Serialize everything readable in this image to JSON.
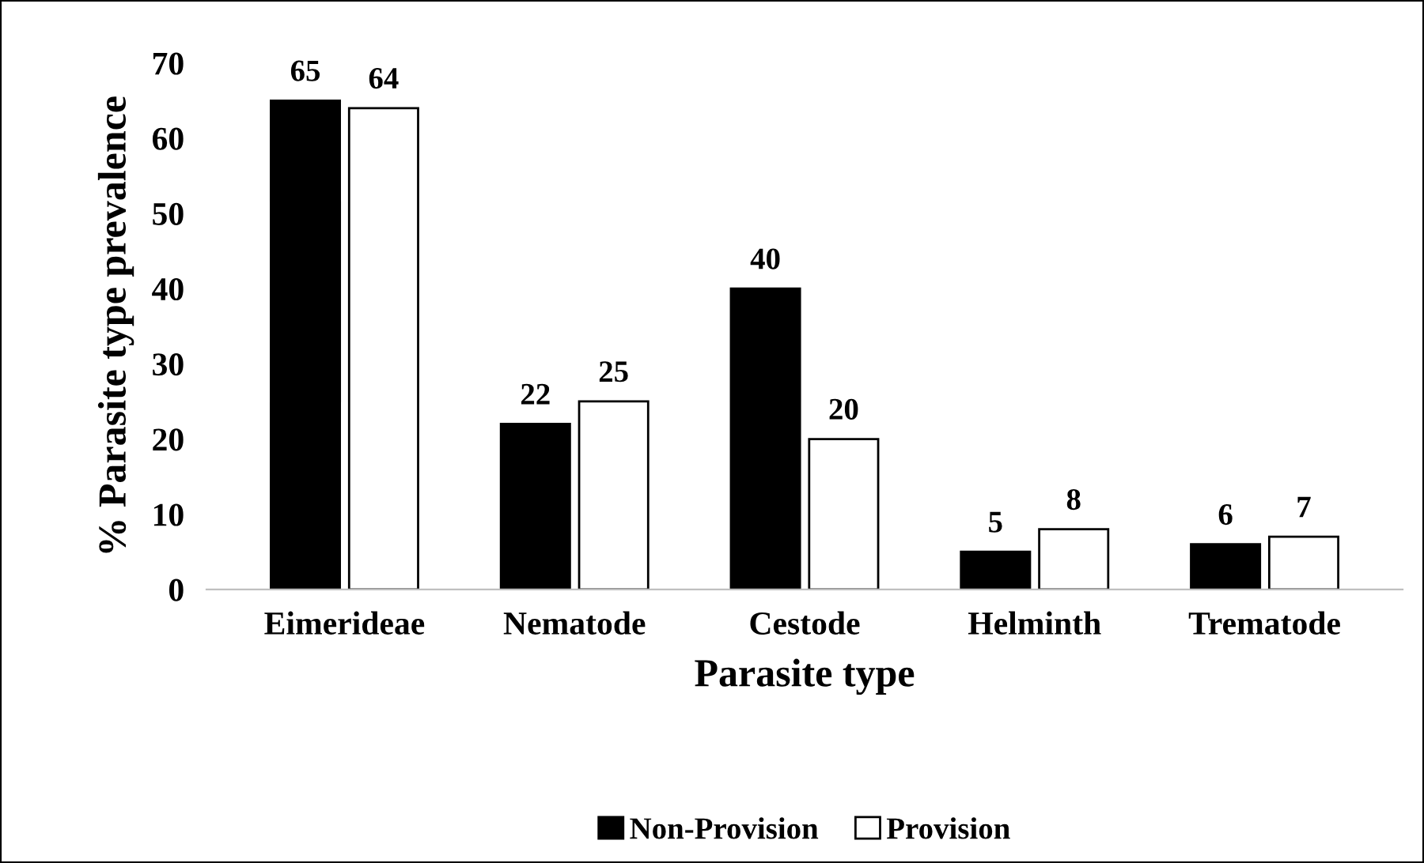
{
  "chart_data": {
    "type": "bar",
    "xlabel": "Parasite type",
    "ylabel": "% Parasite type prevalence",
    "categories": [
      "Eimerideae",
      "Nematode",
      "Cestode",
      "Helminth",
      "Trematode"
    ],
    "series": [
      {
        "name": "Non-Provision",
        "color": "#000000",
        "values": [
          65,
          22,
          40,
          5,
          6
        ]
      },
      {
        "name": "Provision",
        "color": "#ffffff",
        "values": [
          64,
          25,
          20,
          8,
          7
        ]
      }
    ],
    "ylim": [
      0,
      70
    ],
    "yticks": [
      0,
      10,
      20,
      30,
      40,
      50,
      60,
      70
    ],
    "grid": false,
    "legend": "bottom",
    "data_labels": true
  }
}
